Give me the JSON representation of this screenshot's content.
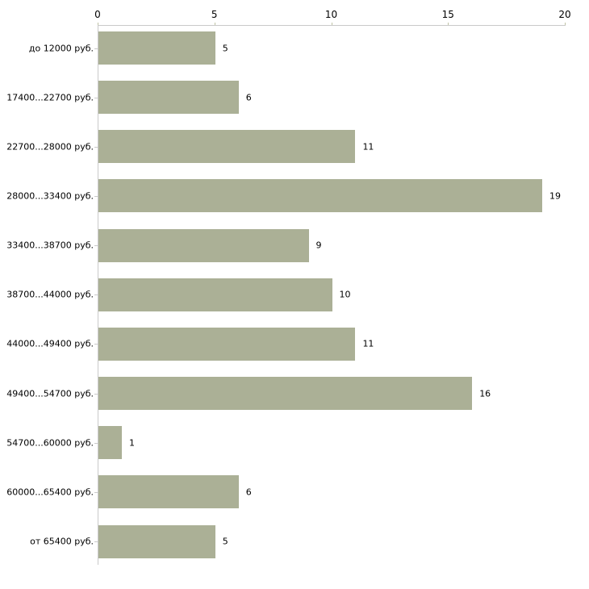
{
  "chart_data": {
    "type": "bar",
    "orientation": "horizontal",
    "title": "",
    "xlabel": "",
    "ylabel": "",
    "categories": [
      "до 12000 руб.",
      "17400...22700 руб.",
      "22700...28000 руб.",
      "28000...33400 руб.",
      "33400...38700 руб.",
      "38700...44000 руб.",
      "44000...49400 руб.",
      "49400...54700 руб.",
      "54700...60000 руб.",
      "60000...65400 руб.",
      "от 65400 руб."
    ],
    "values": [
      5,
      6,
      11,
      19,
      9,
      10,
      11,
      16,
      1,
      6,
      5
    ],
    "value_labels": [
      "5",
      "6",
      "11",
      "19",
      "9",
      "10",
      "11",
      "16",
      "1",
      "6",
      "5"
    ],
    "x_axis": {
      "position": "top",
      "ticks": [
        0,
        5,
        10,
        15,
        20
      ],
      "tick_labels": [
        "0",
        "5",
        "10",
        "15",
        "20"
      ],
      "xlim": [
        0,
        20
      ]
    },
    "grid": false,
    "legend": null,
    "colors": {
      "bar_fill": "#abb096",
      "axis_line": "#c9c9c9",
      "x_tick_mark": "#bfc3a4",
      "text": "#000000",
      "background": "#ffffff"
    }
  }
}
